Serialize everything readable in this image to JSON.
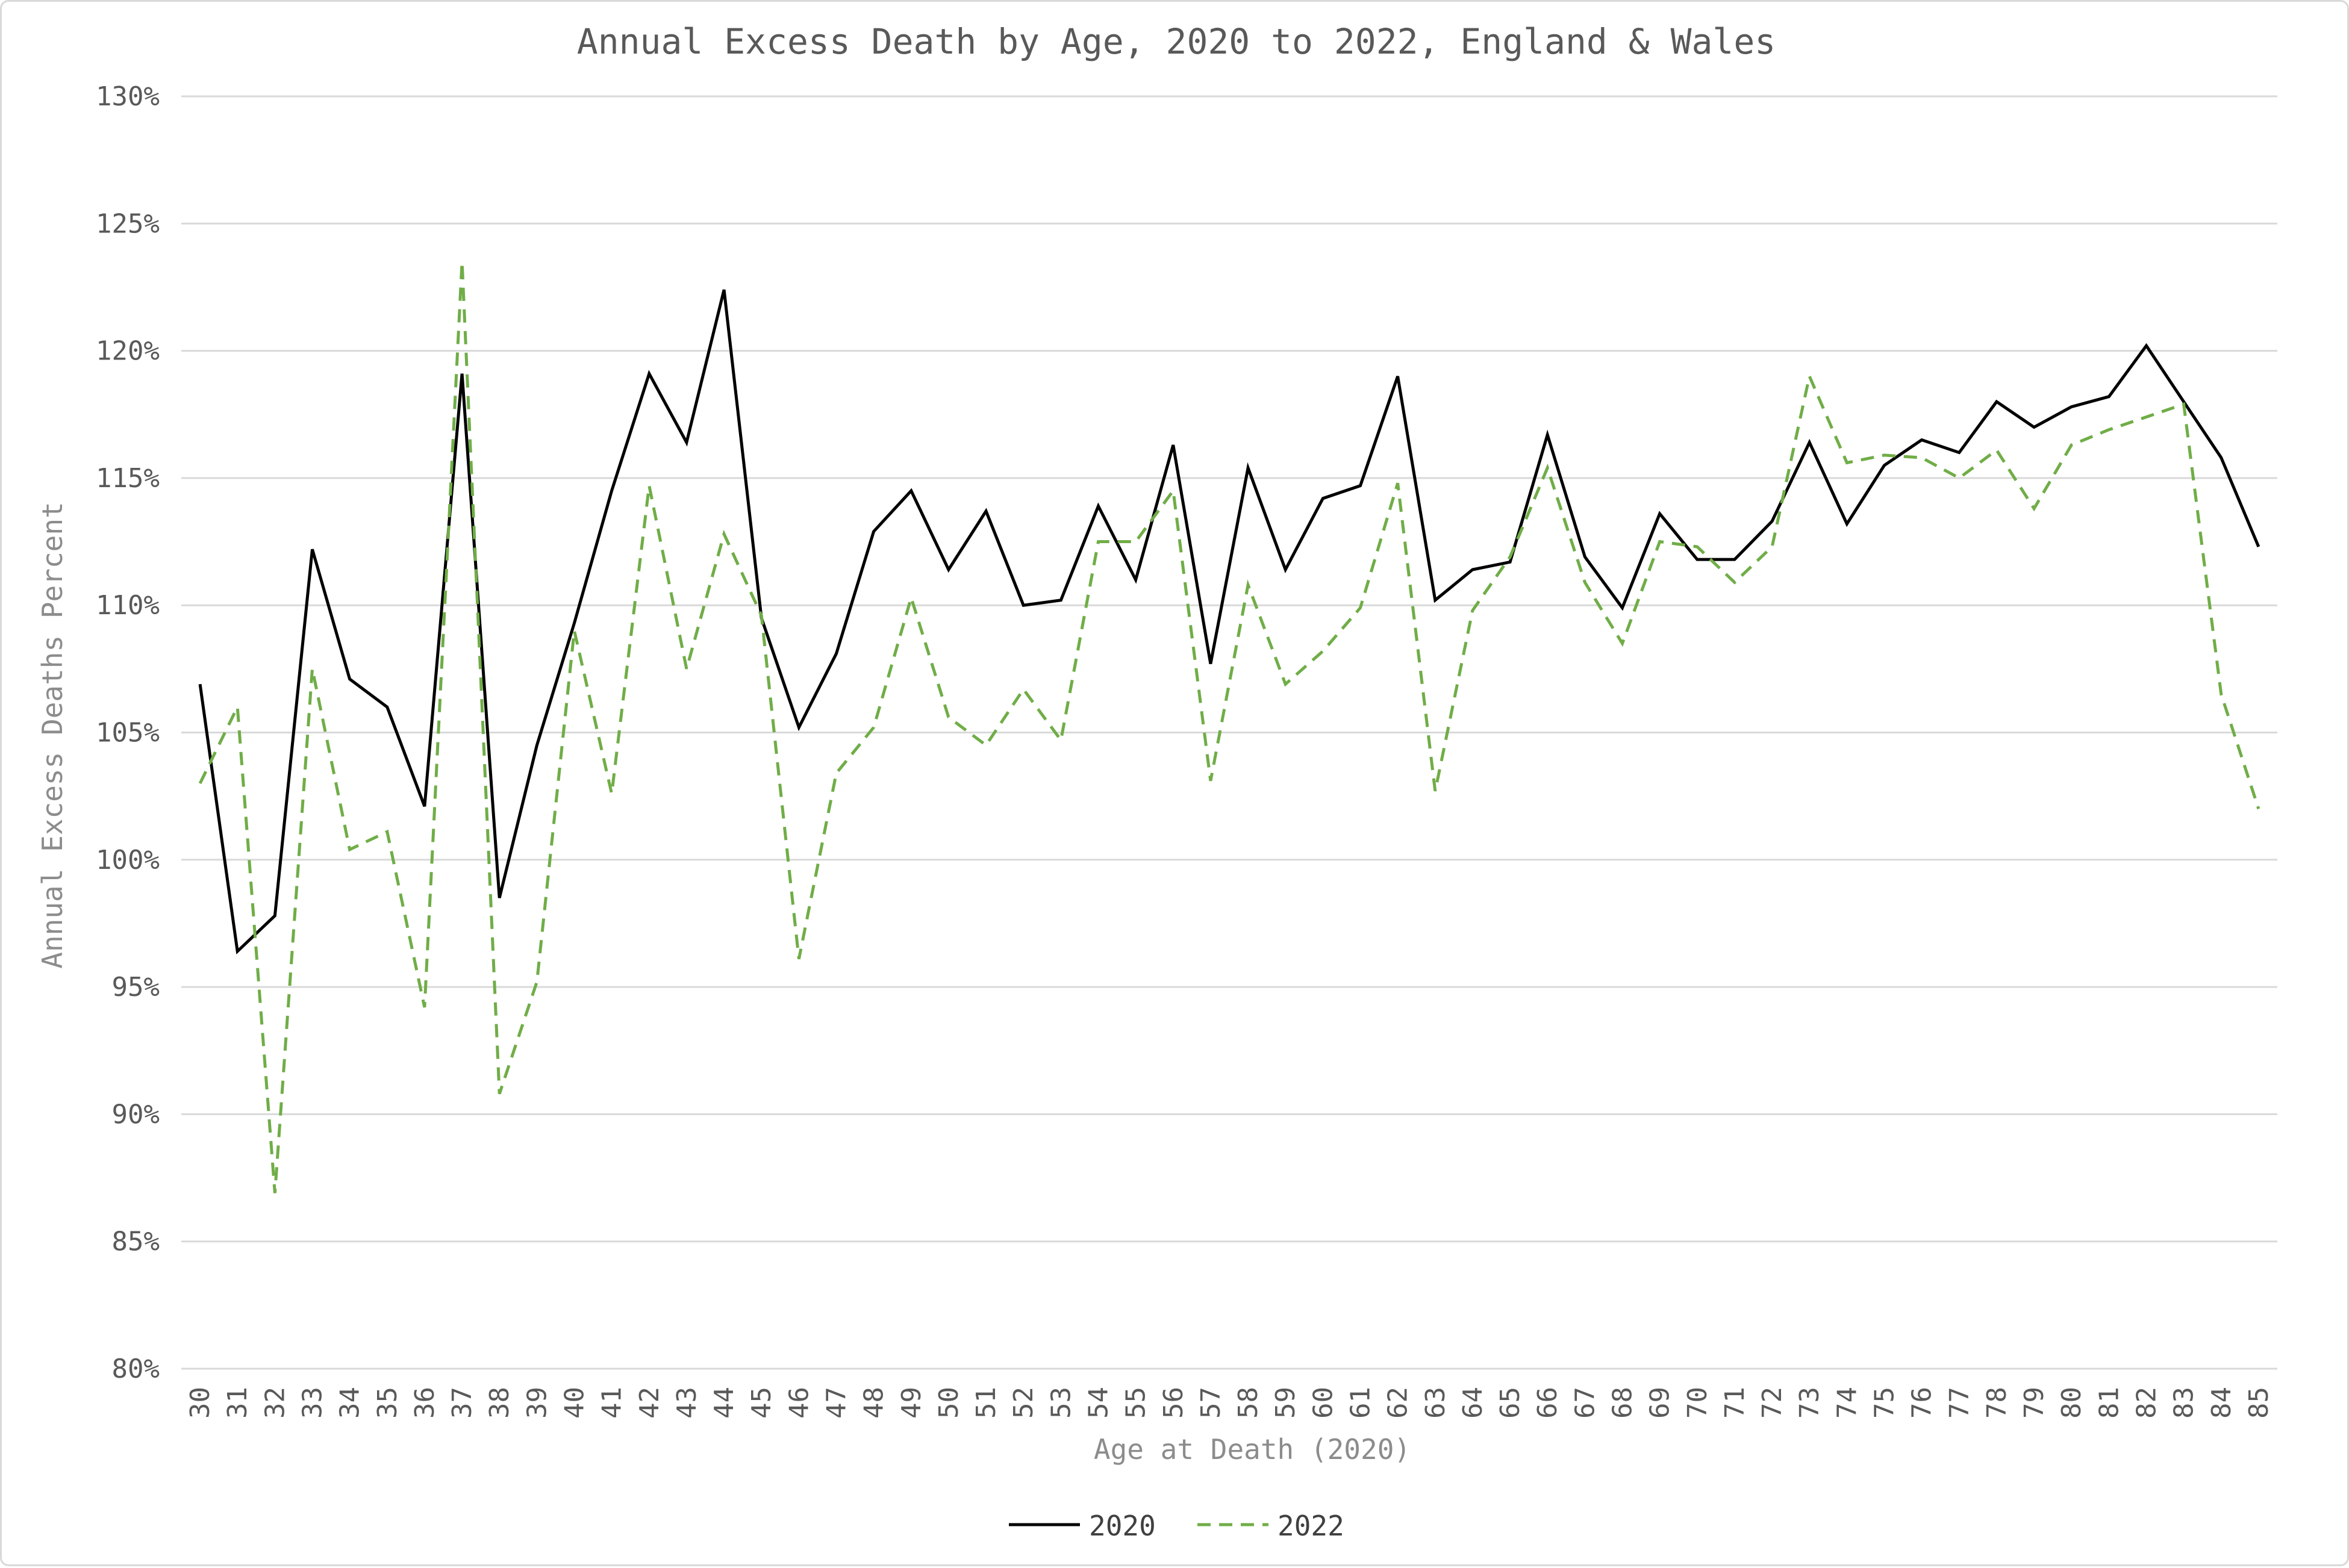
{
  "chart_data": {
    "type": "line",
    "title": "Annual Excess Death by Age, 2020 to 2022, England & Wales",
    "xlabel": "Age at Death (2020)",
    "ylabel": "Annual Excess Deaths Percent",
    "ylim": [
      80,
      130
    ],
    "yticks": [
      80,
      85,
      90,
      95,
      100,
      105,
      110,
      115,
      120,
      125,
      130
    ],
    "ytick_suffix": "%",
    "grid": true,
    "legend_position": "bottom",
    "x": [
      30,
      31,
      32,
      33,
      34,
      35,
      36,
      37,
      38,
      39,
      40,
      41,
      42,
      43,
      44,
      45,
      46,
      47,
      48,
      49,
      50,
      51,
      52,
      53,
      54,
      55,
      56,
      57,
      58,
      59,
      60,
      61,
      62,
      63,
      64,
      65,
      66,
      67,
      68,
      69,
      70,
      71,
      72,
      73,
      74,
      75,
      76,
      77,
      78,
      79,
      80,
      81,
      82,
      83,
      84,
      85
    ],
    "series": [
      {
        "name": "2020",
        "color": "#000000",
        "dash": "solid",
        "values": [
          106.9,
          96.4,
          97.8,
          112.2,
          107.1,
          106.0,
          102.1,
          119.1,
          98.5,
          104.5,
          109.3,
          114.5,
          119.1,
          116.4,
          122.4,
          109.5,
          105.2,
          108.1,
          112.9,
          114.5,
          111.4,
          113.7,
          110.0,
          110.2,
          113.9,
          111.0,
          116.3,
          107.7,
          115.4,
          111.4,
          114.2,
          114.7,
          119.0,
          110.2,
          111.4,
          111.7,
          116.7,
          111.9,
          109.9,
          113.6,
          111.8,
          111.8,
          113.3,
          116.4,
          113.2,
          115.5,
          116.5,
          116.0,
          118.0,
          117.0,
          117.8,
          118.2,
          120.2,
          118.0,
          115.8,
          112.3
        ]
      },
      {
        "name": "2022",
        "color": "#70ad47",
        "dash": "dashed",
        "values": [
          103.0,
          106.0,
          86.9,
          107.5,
          100.4,
          101.1,
          94.2,
          123.5,
          90.8,
          95.2,
          109.0,
          102.6,
          114.7,
          107.5,
          112.8,
          109.6,
          96.1,
          103.4,
          105.2,
          110.3,
          105.6,
          104.5,
          106.7,
          104.7,
          112.5,
          112.5,
          114.5,
          103.1,
          110.8,
          106.9,
          108.2,
          109.9,
          114.8,
          102.7,
          109.8,
          111.9,
          115.4,
          110.9,
          108.5,
          112.5,
          112.3,
          110.9,
          112.3,
          119.0,
          115.6,
          115.9,
          115.8,
          115.0,
          116.1,
          113.8,
          116.3,
          116.9,
          117.4,
          117.9,
          106.5,
          102.0
        ]
      }
    ]
  }
}
